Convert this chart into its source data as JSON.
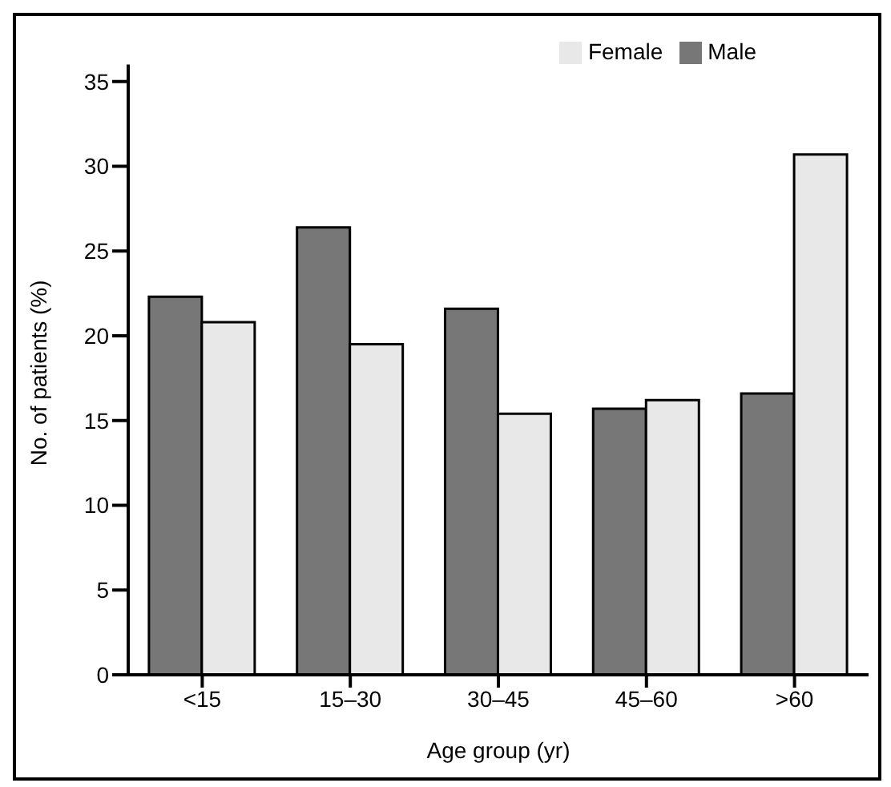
{
  "chart_data": {
    "type": "bar",
    "xlabel": "Age group (yr)",
    "ylabel": "No. of patients (%)",
    "categories": [
      "<15",
      "15–30",
      "30–45",
      "45–60",
      ">60"
    ],
    "series": [
      {
        "name": "Male",
        "color": "#777777",
        "values": [
          22.3,
          26.4,
          21.6,
          15.7,
          16.6
        ]
      },
      {
        "name": "Female",
        "color": "#e8e8e8",
        "values": [
          20.8,
          19.5,
          15.4,
          16.2,
          30.7
        ]
      }
    ],
    "ylim": [
      0,
      36
    ],
    "yticks": [
      0,
      5,
      10,
      15,
      20,
      25,
      30,
      35
    ],
    "grid": false,
    "legend": "top right"
  }
}
